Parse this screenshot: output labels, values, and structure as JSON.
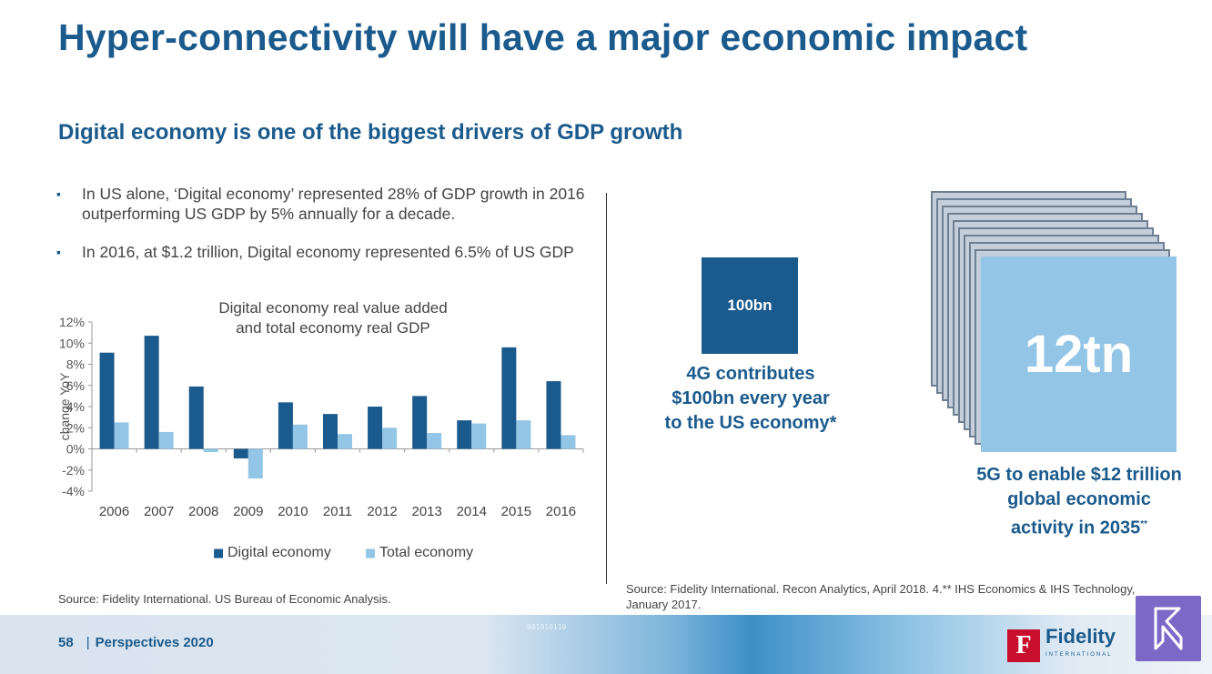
{
  "title": "Hyper-connectivity will have a major economic impact",
  "subtitle": "Digital economy is one of the biggest drivers of GDP growth",
  "bullets": [
    "In US alone, ‘Digital economy’ represented 28% of GDP growth in 2016 outperforming US GDP by 5% annually for a decade.",
    "In 2016, at $1.2 trillion, Digital economy represented 6.5% of US GDP"
  ],
  "bullet_symbol": "▪",
  "chart_data": {
    "type": "bar",
    "title": "Digital economy real value added and total economy real GDP",
    "title_lines": [
      "Digital economy real value added",
      "and total economy real GDP"
    ],
    "categories": [
      "2006",
      "2007",
      "2008",
      "2009",
      "2010",
      "2011",
      "2012",
      "2013",
      "2014",
      "2015",
      "2016"
    ],
    "series": [
      {
        "name": "Digital economy",
        "color": "#1b5a8c",
        "values": [
          9.1,
          10.7,
          5.9,
          -0.9,
          4.4,
          3.3,
          4.0,
          5.0,
          2.7,
          9.6,
          6.4
        ]
      },
      {
        "name": "Total economy",
        "color": "#93c6e6",
        "values": [
          2.5,
          1.6,
          -0.3,
          -2.8,
          2.3,
          1.4,
          2.0,
          1.5,
          2.4,
          2.7,
          1.3
        ]
      }
    ],
    "ylabel": "change YoY",
    "ylim": [
      -4,
      12
    ],
    "yticks": [
      12,
      10,
      8,
      6,
      4,
      2,
      0,
      -2,
      -4
    ],
    "ytick_labels": [
      "12%",
      "10%",
      "8%",
      "6%",
      "4%",
      "2%",
      "0%",
      "-2%",
      "-4%"
    ],
    "legend": "bottom",
    "legend_symbol": "■"
  },
  "source_left": "Source: Fidelity International. US Bureau of Economic Analysis.",
  "box_4g": "100bn",
  "caption_4g": [
    "4G contributes",
    "$100bn every year",
    "to the US economy*"
  ],
  "box_5g": "12tn",
  "caption_5g": [
    "5G to enable $12 trillion",
    "global economic",
    "activity in 2035"
  ],
  "caption_5g_mark": "**",
  "source_right": "Source: Fidelity International. Recon Analytics, April 2018. 4.** IHS Economics & IHS Technology, January 2017.",
  "footer": {
    "page": "58",
    "separator": "|",
    "label": "Perspectives 2020",
    "code": "001010110"
  },
  "logo": {
    "mark": "F",
    "word": "Fidelity",
    "sub": "INTERNATIONAL"
  }
}
